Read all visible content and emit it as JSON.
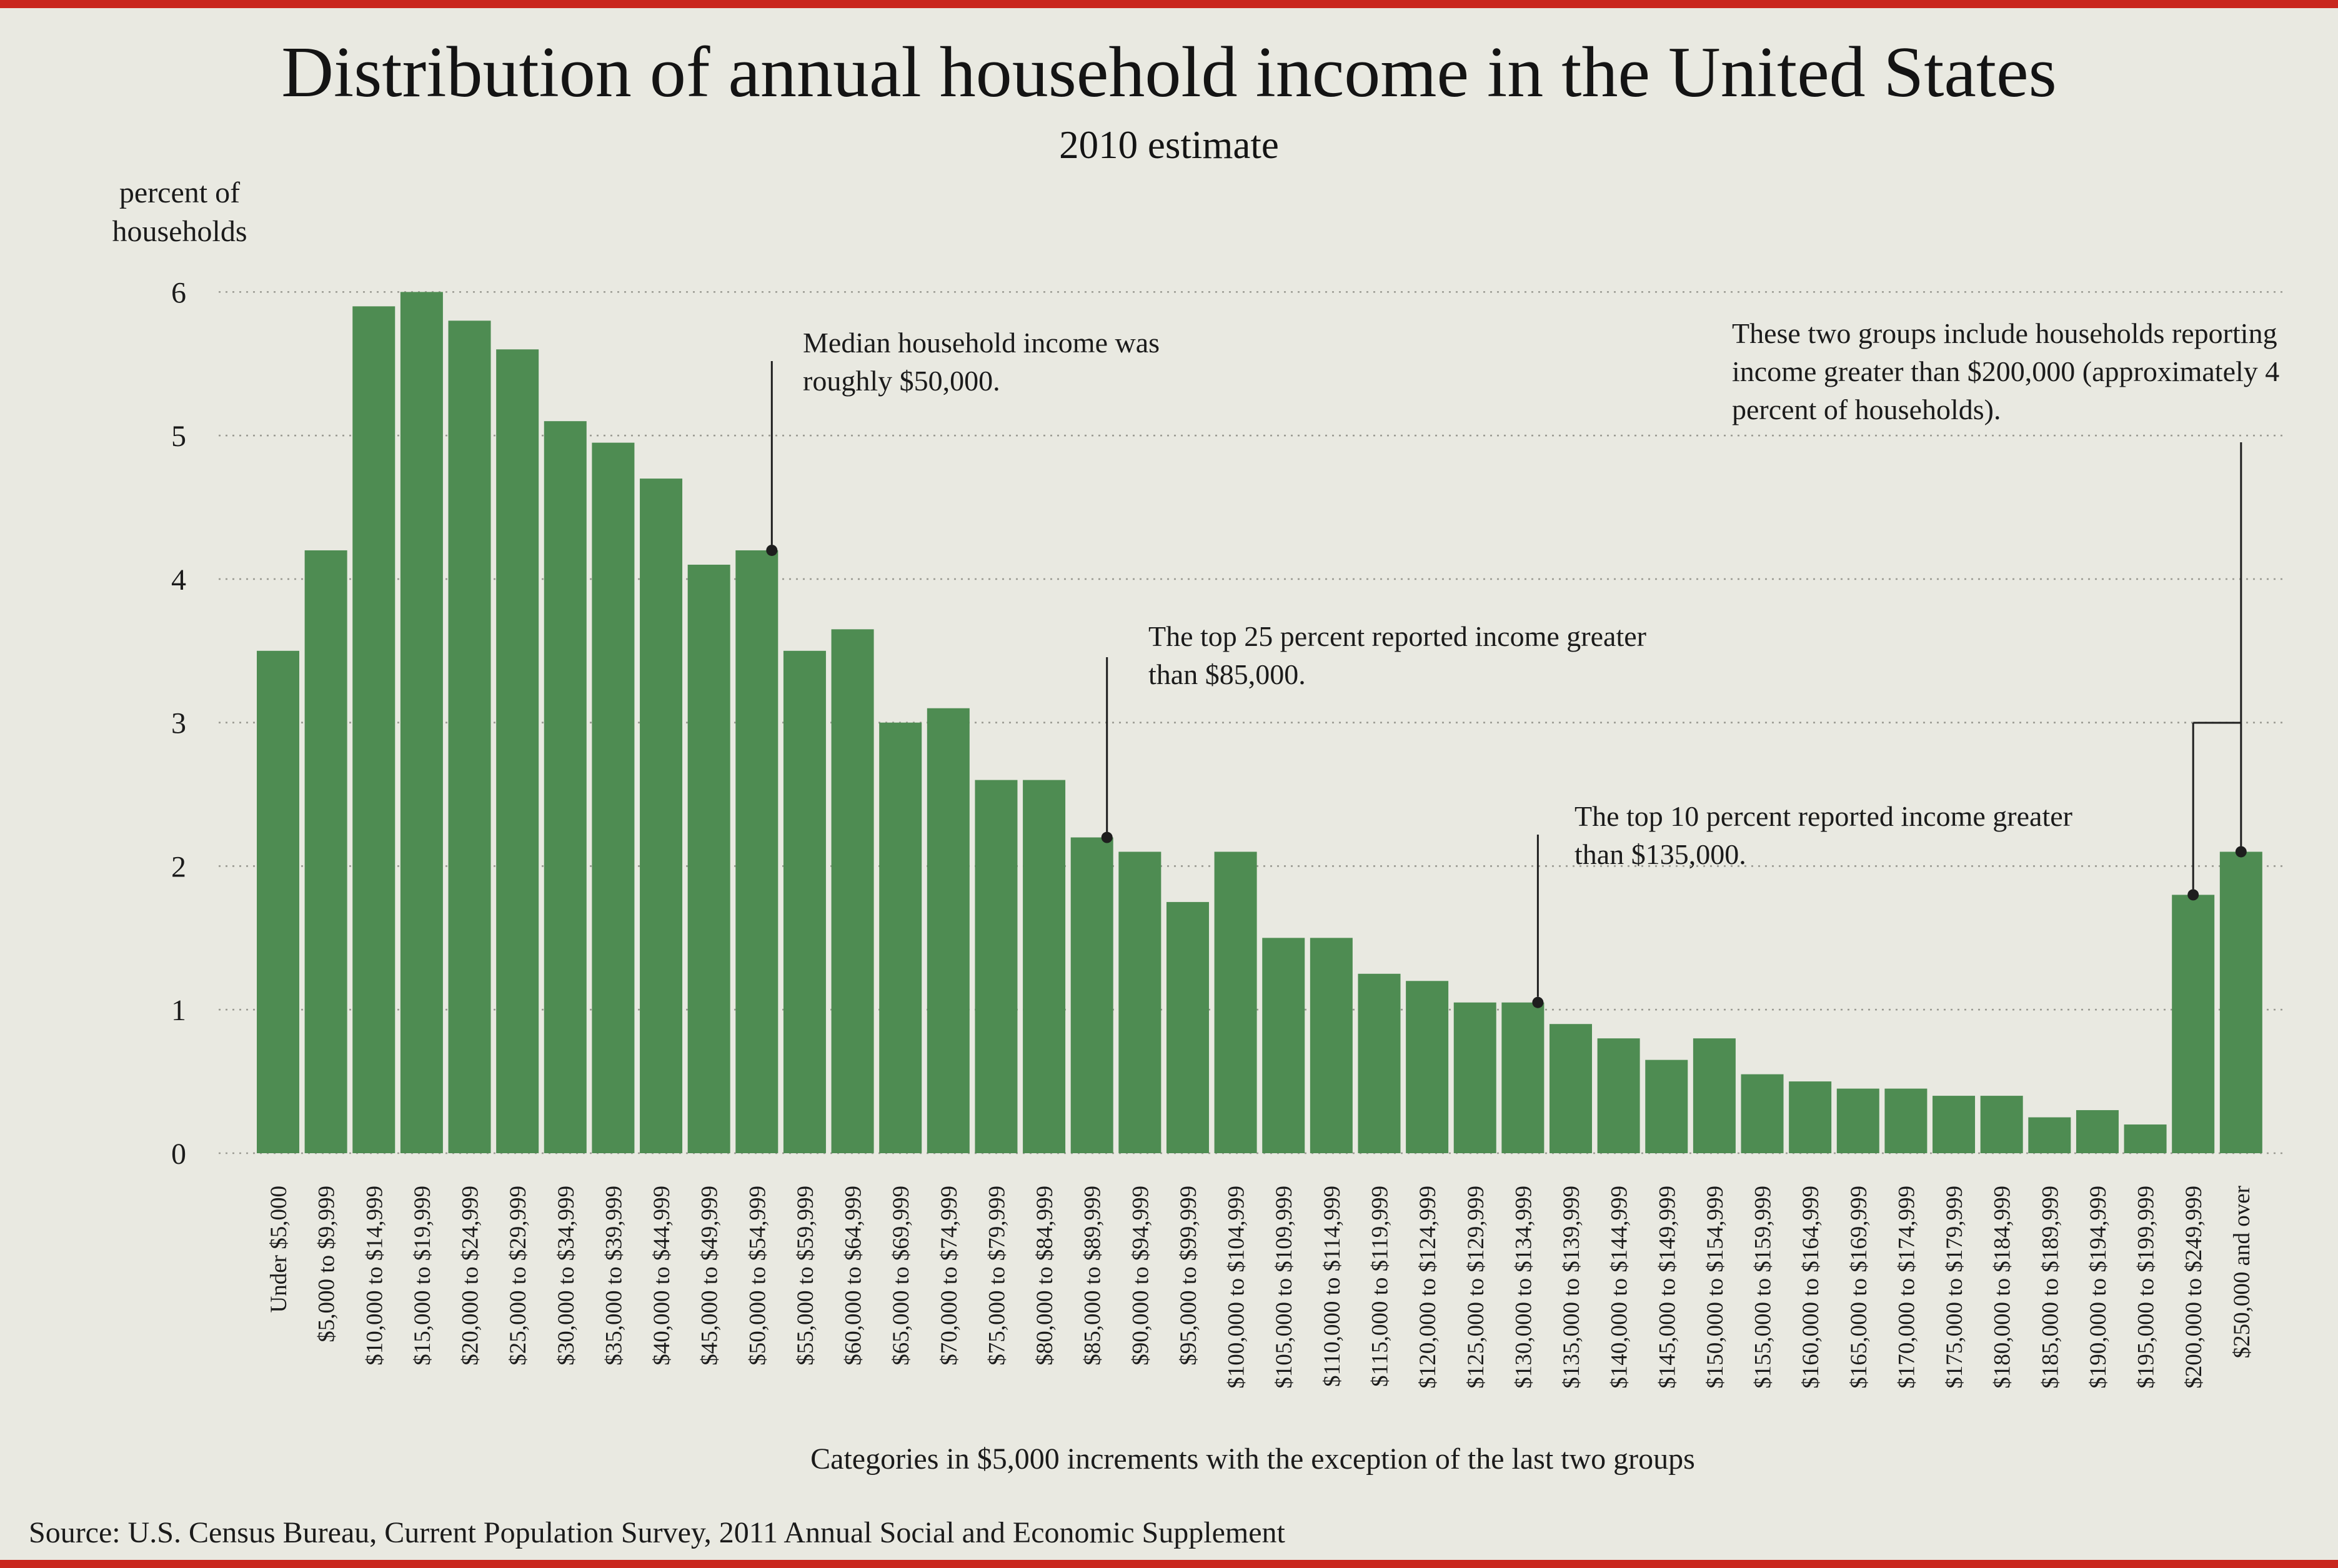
{
  "page": {
    "background": "#e9e9e1",
    "accent_bar_color": "#c9271e",
    "text_color": "#1b1b1b"
  },
  "footer": {
    "source": "Source: U.S. Census Bureau, Current Population Survey, 2011 Annual Social and Economic Supplement"
  },
  "chart_data": {
    "type": "bar",
    "title": "Distribution of annual household income in the United States",
    "subtitle": "2010 estimate",
    "ylabel": "percent of households",
    "xlabel": "Categories in $5,000 increments with the exception of the last two groups",
    "ylim": [
      0,
      6
    ],
    "yticks": [
      0,
      1,
      2,
      3,
      4,
      5,
      6
    ],
    "grid": "horizontal-dotted",
    "legend": "none",
    "bar_color": "#4e8c52",
    "gridline_color": "#9b9b93",
    "categories": [
      "Under $5,000",
      "$5,000 to $9,999",
      "$10,000 to $14,999",
      "$15,000 to $19,999",
      "$20,000 to $24,999",
      "$25,000 to $29,999",
      "$30,000 to $34,999",
      "$35,000 to $39,999",
      "$40,000 to $44,999",
      "$45,000 to $49,999",
      "$50,000 to $54,999",
      "$55,000 to $59,999",
      "$60,000 to $64,999",
      "$65,000 to $69,999",
      "$70,000 to $74,999",
      "$75,000 to $79,999",
      "$80,000 to $84,999",
      "$85,000 to $89,999",
      "$90,000 to $94,999",
      "$95,000 to $99,999",
      "$100,000 to $104,999",
      "$105,000 to $109,999",
      "$110,000 to $114,999",
      "$115,000 to $119,999",
      "$120,000 to $124,999",
      "$125,000 to $129,999",
      "$130,000 to $134,999",
      "$135,000 to $139,999",
      "$140,000 to $144,999",
      "$145,000 to $149,999",
      "$150,000 to $154,999",
      "$155,000 to $159,999",
      "$160,000 to $164,999",
      "$165,000 to $169,999",
      "$170,000 to $174,999",
      "$175,000 to $179,999",
      "$180,000 to $184,999",
      "$185,000 to $189,999",
      "$190,000 to $194,999",
      "$195,000 to $199,999",
      "$200,000 to $249,999",
      "$250,000 and over"
    ],
    "values": [
      3.5,
      4.2,
      5.9,
      6.0,
      5.8,
      5.6,
      5.1,
      4.95,
      4.7,
      4.1,
      4.2,
      3.5,
      3.65,
      3.0,
      3.1,
      2.6,
      2.6,
      2.2,
      2.1,
      1.75,
      2.1,
      1.5,
      1.5,
      1.25,
      1.2,
      1.05,
      1.05,
      0.9,
      0.8,
      0.65,
      0.8,
      0.55,
      0.5,
      0.45,
      0.45,
      0.4,
      0.4,
      0.25,
      0.3,
      0.2,
      1.8,
      2.1
    ],
    "annotations": [
      {
        "text": "Median household income was roughly $50,000.",
        "target_category": "$50,000 to $54,999",
        "target_value": 4.2
      },
      {
        "text": "The top 25 percent reported income greater than $85,000.",
        "target_category": "$85,000 to $89,999",
        "target_value": 2.2
      },
      {
        "text": "The top 10 percent reported income greater than $135,000.",
        "target_category": "$130,000 to $134,999",
        "target_value": 1.05
      },
      {
        "text": "These two groups include households reporting income greater than $200,000 (approximately 4 percent of households).",
        "target_categories": [
          "$200,000 to $249,999",
          "$250,000 and over"
        ],
        "target_values": [
          1.8,
          2.1
        ]
      }
    ]
  }
}
